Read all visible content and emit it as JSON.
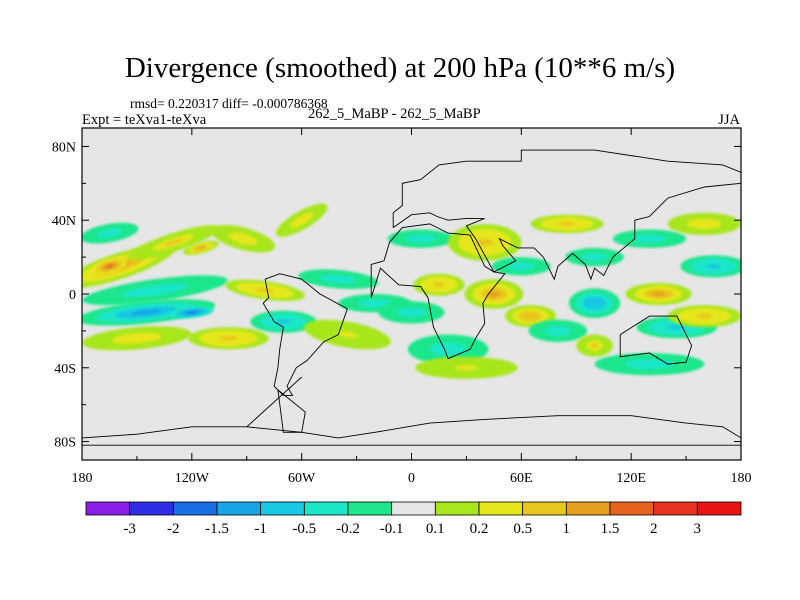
{
  "header": {
    "title": "Divergence (smoothed) at 200 hPa (10**6 m/s)",
    "stats": "rmsd= 0.220317 diff= -0.000786368",
    "expt": "Expt = teXva1-teXva",
    "center_label": "262_5_MaBP - 262_5_MaBP",
    "season": "JJA"
  },
  "chart_data": {
    "type": "heatmap",
    "title": "Divergence (smoothed) at 200 hPa (10**6 m/s)",
    "subtitle": "262_5_MaBP - 262_5_MaBP",
    "season": "JJA",
    "rmsd": 0.220317,
    "diff": -0.000786368,
    "xlabel": "",
    "ylabel": "",
    "xlim": [
      -180,
      180
    ],
    "ylim": [
      -90,
      90
    ],
    "x_ticks": [
      -180,
      -120,
      -60,
      0,
      60,
      120,
      180
    ],
    "x_tick_labels": [
      "180",
      "120W",
      "60W",
      "0",
      "60E",
      "120E",
      "180"
    ],
    "y_ticks": [
      80,
      40,
      0,
      -40,
      -80
    ],
    "y_tick_labels": [
      "80N",
      "40N",
      "0",
      "40S",
      "80S"
    ],
    "colorbar": {
      "levels": [
        -3,
        -2,
        -1.5,
        -1,
        -0.5,
        -0.2,
        -0.1,
        0.1,
        0.2,
        0.5,
        1,
        1.5,
        2,
        3
      ],
      "labels": [
        "-3",
        "-2",
        "-1.5",
        "-1",
        "-0.5",
        "-0.2",
        "-0.1",
        "0.1",
        "0.2",
        "0.5",
        "1",
        "1.5",
        "2",
        "3"
      ],
      "colors": [
        "#8a1ee6",
        "#2e2ee6",
        "#1a6ee6",
        "#19a6e6",
        "#19c8e2",
        "#1ce6c8",
        "#1ee68c",
        "#e6e6e6",
        "#a8e61e",
        "#e6e61e",
        "#e6c81e",
        "#e6a01e",
        "#e6641e",
        "#e6321e",
        "#e61414"
      ]
    },
    "features": [
      {
        "lon": -160,
        "lat": 15,
        "rx": 32,
        "ry": 7,
        "value": 1.2,
        "rot": -18
      },
      {
        "lon": -165,
        "lat": 15,
        "rx": 10,
        "ry": 4,
        "value": 1.7,
        "rot": -15
      },
      {
        "lon": -130,
        "lat": 28,
        "rx": 26,
        "ry": 5,
        "value": 0.5,
        "rot": -18
      },
      {
        "lon": -115,
        "lat": 25,
        "rx": 10,
        "ry": 3,
        "value": 1.2,
        "rot": -15
      },
      {
        "lon": -165,
        "lat": 33,
        "rx": 16,
        "ry": 5,
        "value": -0.5,
        "rot": -10
      },
      {
        "lon": -140,
        "lat": 2,
        "rx": 40,
        "ry": 6,
        "value": -0.5,
        "rot": -8
      },
      {
        "lon": -145,
        "lat": -10,
        "rx": 38,
        "ry": 6,
        "value": -1.1,
        "rot": -6
      },
      {
        "lon": -120,
        "lat": -10,
        "rx": 12,
        "ry": 3,
        "value": -1.6,
        "rot": -6
      },
      {
        "lon": -150,
        "lat": -24,
        "rx": 30,
        "ry": 6,
        "value": 0.4,
        "rot": -5
      },
      {
        "lon": -100,
        "lat": -24,
        "rx": 22,
        "ry": 6,
        "value": 0.6,
        "rot": 0
      },
      {
        "lon": -92,
        "lat": 30,
        "rx": 18,
        "ry": 6,
        "value": 0.3,
        "rot": 15
      },
      {
        "lon": -80,
        "lat": 2,
        "rx": 22,
        "ry": 5,
        "value": 0.6,
        "rot": 8
      },
      {
        "lon": -70,
        "lat": -15,
        "rx": 18,
        "ry": 6,
        "value": -0.6,
        "rot": 0
      },
      {
        "lon": -60,
        "lat": 40,
        "rx": 16,
        "ry": 5,
        "value": 0.3,
        "rot": -30
      },
      {
        "lon": -40,
        "lat": 8,
        "rx": 22,
        "ry": 5,
        "value": -0.3,
        "rot": 5
      },
      {
        "lon": -35,
        "lat": -22,
        "rx": 24,
        "ry": 7,
        "value": 0.25,
        "rot": 10
      },
      {
        "lon": -20,
        "lat": -5,
        "rx": 20,
        "ry": 5,
        "value": -0.4,
        "rot": 0
      },
      {
        "lon": 5,
        "lat": 30,
        "rx": 18,
        "ry": 5,
        "value": -0.4,
        "rot": 0
      },
      {
        "lon": 15,
        "lat": 5,
        "rx": 14,
        "ry": 6,
        "value": 0.6,
        "rot": 0
      },
      {
        "lon": 0,
        "lat": -10,
        "rx": 18,
        "ry": 6,
        "value": -0.3,
        "rot": 0
      },
      {
        "lon": 20,
        "lat": -30,
        "rx": 22,
        "ry": 8,
        "value": -0.3,
        "rot": 0
      },
      {
        "lon": 30,
        "lat": -40,
        "rx": 28,
        "ry": 6,
        "value": 0.2,
        "rot": 0
      },
      {
        "lon": 40,
        "lat": 28,
        "rx": 20,
        "ry": 10,
        "value": 0.6,
        "rot": 0
      },
      {
        "lon": 45,
        "lat": 0,
        "rx": 16,
        "ry": 8,
        "value": 1.0,
        "rot": 0
      },
      {
        "lon": 60,
        "lat": 15,
        "rx": 16,
        "ry": 5,
        "value": -0.4,
        "rot": 0
      },
      {
        "lon": 65,
        "lat": -12,
        "rx": 14,
        "ry": 6,
        "value": 0.8,
        "rot": 0
      },
      {
        "lon": 80,
        "lat": -20,
        "rx": 16,
        "ry": 6,
        "value": -0.5,
        "rot": 0
      },
      {
        "lon": 85,
        "lat": 38,
        "rx": 20,
        "ry": 5,
        "value": 0.7,
        "rot": 0
      },
      {
        "lon": 100,
        "lat": 20,
        "rx": 16,
        "ry": 5,
        "value": -0.4,
        "rot": 0
      },
      {
        "lon": 100,
        "lat": -5,
        "rx": 14,
        "ry": 8,
        "value": -0.8,
        "rot": 0
      },
      {
        "lon": 100,
        "lat": -28,
        "rx": 10,
        "ry": 6,
        "value": 0.5,
        "rot": 0
      },
      {
        "lon": 130,
        "lat": 30,
        "rx": 20,
        "ry": 5,
        "value": -0.4,
        "rot": 0
      },
      {
        "lon": 135,
        "lat": 0,
        "rx": 18,
        "ry": 6,
        "value": 1.0,
        "rot": 0
      },
      {
        "lon": 145,
        "lat": -18,
        "rx": 22,
        "ry": 6,
        "value": -0.6,
        "rot": 0
      },
      {
        "lon": 130,
        "lat": -38,
        "rx": 30,
        "ry": 6,
        "value": -0.3,
        "rot": 0
      },
      {
        "lon": 160,
        "lat": 38,
        "rx": 20,
        "ry": 6,
        "value": 0.4,
        "rot": 0
      },
      {
        "lon": 165,
        "lat": 15,
        "rx": 18,
        "ry": 6,
        "value": -0.6,
        "rot": 0
      },
      {
        "lon": 160,
        "lat": -12,
        "rx": 20,
        "ry": 6,
        "value": 0.6,
        "rot": 0
      }
    ],
    "coastlines": [
      [
        [
          -22,
          -2
        ],
        [
          -22,
          16
        ],
        [
          -15,
          18
        ],
        [
          -12,
          28
        ],
        [
          -5,
          36
        ],
        [
          10,
          38
        ],
        [
          20,
          33
        ],
        [
          32,
          32
        ],
        [
          40,
          15
        ],
        [
          45,
          12
        ],
        [
          51,
          11
        ],
        [
          42,
          0
        ],
        [
          39,
          -5
        ],
        [
          40,
          -16
        ],
        [
          35,
          -24
        ],
        [
          32,
          -30
        ],
        [
          20,
          -35
        ],
        [
          18,
          -30
        ],
        [
          12,
          -18
        ],
        [
          9,
          -2
        ],
        [
          5,
          4
        ],
        [
          -7,
          5
        ],
        [
          -17,
          14
        ],
        [
          -22,
          -2
        ]
      ],
      [
        [
          -80,
          8
        ],
        [
          -78,
          -2
        ],
        [
          -81,
          -5
        ],
        [
          -75,
          -15
        ],
        [
          -70,
          -18
        ],
        [
          -72,
          -30
        ],
        [
          -73,
          -40
        ],
        [
          -75,
          -50
        ],
        [
          -70,
          -55
        ],
        [
          -65,
          -55
        ],
        [
          -68,
          -50
        ],
        [
          -63,
          -40
        ],
        [
          -57,
          -36
        ],
        [
          -48,
          -26
        ],
        [
          -40,
          -22
        ],
        [
          -35,
          -8
        ],
        [
          -50,
          0
        ],
        [
          -60,
          8
        ],
        [
          -72,
          11
        ],
        [
          -80,
          8
        ]
      ],
      [
        [
          -10,
          36
        ],
        [
          -10,
          44
        ],
        [
          -5,
          48
        ],
        [
          -5,
          60
        ],
        [
          5,
          62
        ],
        [
          15,
          70
        ],
        [
          30,
          72
        ],
        [
          60,
          72
        ],
        [
          60,
          78
        ],
        [
          100,
          78
        ],
        [
          140,
          72
        ],
        [
          170,
          70
        ],
        [
          180,
          66
        ],
        [
          180,
          60
        ],
        [
          160,
          58
        ],
        [
          140,
          52
        ],
        [
          130,
          42
        ],
        [
          122,
          40
        ],
        [
          122,
          30
        ],
        [
          110,
          20
        ],
        [
          105,
          10
        ],
        [
          100,
          14
        ],
        [
          98,
          8
        ],
        [
          95,
          16
        ],
        [
          88,
          22
        ],
        [
          80,
          15
        ],
        [
          78,
          8
        ],
        [
          72,
          20
        ],
        [
          67,
          25
        ],
        [
          58,
          25
        ],
        [
          56,
          26
        ],
        [
          48,
          30
        ],
        [
          50,
          26
        ],
        [
          57,
          18
        ],
        [
          45,
          12
        ],
        [
          35,
          30
        ],
        [
          30,
          37
        ],
        [
          40,
          41
        ],
        [
          30,
          41
        ],
        [
          20,
          40
        ],
        [
          14,
          42
        ],
        [
          10,
          44
        ],
        [
          0,
          43
        ],
        [
          -10,
          36
        ]
      ],
      [
        [
          -60,
          -45
        ],
        [
          -90,
          -72
        ],
        [
          -60,
          -75
        ],
        [
          -40,
          -78
        ],
        [
          -20,
          -75
        ],
        [
          10,
          -70
        ],
        [
          40,
          -68
        ],
        [
          80,
          -66
        ],
        [
          120,
          -66
        ],
        [
          150,
          -70
        ],
        [
          170,
          -72
        ],
        [
          180,
          -78
        ],
        [
          180,
          -82
        ],
        [
          -180,
          -82
        ],
        [
          -180,
          -78
        ],
        [
          -150,
          -76
        ],
        [
          -120,
          -72
        ],
        [
          -90,
          -72
        ]
      ],
      [
        [
          114,
          -22
        ],
        [
          114,
          -34
        ],
        [
          130,
          -32
        ],
        [
          140,
          -38
        ],
        [
          150,
          -37
        ],
        [
          153,
          -28
        ],
        [
          145,
          -12
        ],
        [
          136,
          -12
        ],
        [
          130,
          -12
        ],
        [
          122,
          -17
        ],
        [
          114,
          -22
        ]
      ],
      [
        [
          -73,
          -52
        ],
        [
          -70,
          -75
        ],
        [
          -60,
          -75
        ],
        [
          -58,
          -64
        ],
        [
          -73,
          -52
        ]
      ]
    ]
  }
}
